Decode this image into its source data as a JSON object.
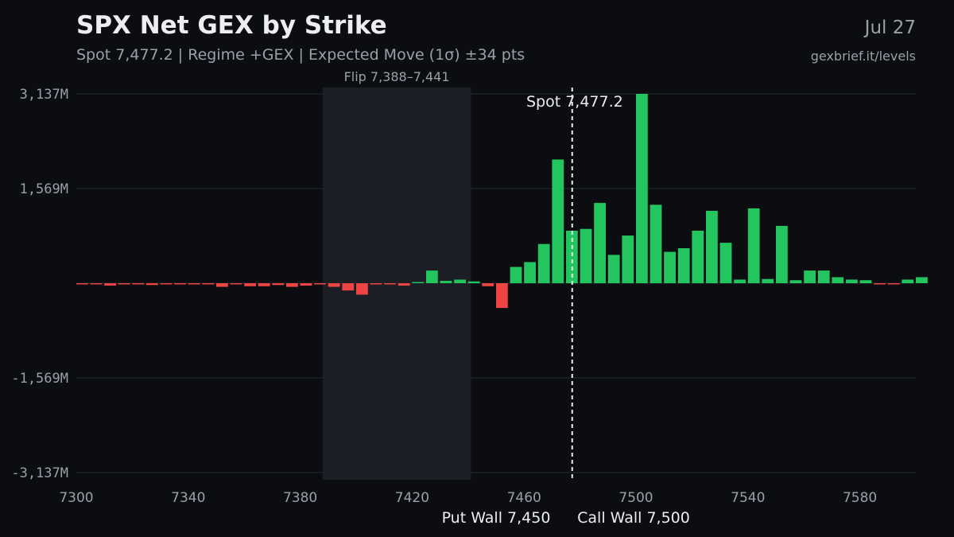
{
  "header": {
    "title": "SPX Net GEX by Strike",
    "subtitle": "Spot 7,477.2 | Regime +GEX | Expected Move (1σ) ±34 pts",
    "date": "Jul 27",
    "source": "gexbrief.it/levels"
  },
  "chart_data": {
    "type": "bar",
    "unit": "M",
    "x": [
      7300,
      7305,
      7310,
      7315,
      7320,
      7325,
      7330,
      7335,
      7340,
      7345,
      7350,
      7355,
      7360,
      7365,
      7370,
      7375,
      7380,
      7385,
      7390,
      7395,
      7400,
      7405,
      7410,
      7415,
      7420,
      7425,
      7430,
      7435,
      7440,
      7445,
      7450,
      7455,
      7460,
      7465,
      7470,
      7475,
      7480,
      7485,
      7490,
      7495,
      7500,
      7505,
      7510,
      7515,
      7520,
      7525,
      7530,
      7535,
      7540,
      7545,
      7550,
      7555,
      7560,
      7565,
      7570,
      7575,
      7580,
      7585,
      7590,
      7595,
      7600
    ],
    "values": [
      -15,
      -10,
      -40,
      -10,
      -10,
      -30,
      -10,
      -10,
      -10,
      -10,
      -60,
      -10,
      -50,
      -50,
      -30,
      -60,
      -40,
      -20,
      -60,
      -120,
      -190,
      -20,
      -15,
      -40,
      20,
      210,
      40,
      60,
      30,
      -50,
      -410,
      270,
      350,
      650,
      2050,
      870,
      900,
      1330,
      470,
      790,
      3137,
      1300,
      520,
      580,
      870,
      1200,
      670,
      60,
      1240,
      70,
      950,
      50,
      210,
      210,
      100,
      60,
      50,
      -20,
      -15,
      60,
      100
    ],
    "x_ticks": [
      7300,
      7340,
      7380,
      7420,
      7460,
      7500,
      7540,
      7580
    ],
    "y_ticks": [
      3137,
      1569,
      -1569,
      -3137
    ],
    "y_tick_labels": [
      "3,137M",
      "1,569M",
      "-1,569M",
      "-3,137M"
    ],
    "ylim": [
      -3137,
      3137
    ],
    "xlim": [
      7300,
      7600
    ],
    "positive_color": "#22c55e",
    "negative_color": "#ef4444",
    "spot": {
      "value": 7477.2,
      "label": "Spot 7,477.2"
    },
    "flip_zone": {
      "from": 7388,
      "to": 7441,
      "label": "Flip 7,388–7,441"
    },
    "put_wall": {
      "value": 7450,
      "label": "Put Wall 7,450"
    },
    "call_wall": {
      "value": 7500,
      "label": "Call Wall 7,500"
    },
    "grid": true
  }
}
